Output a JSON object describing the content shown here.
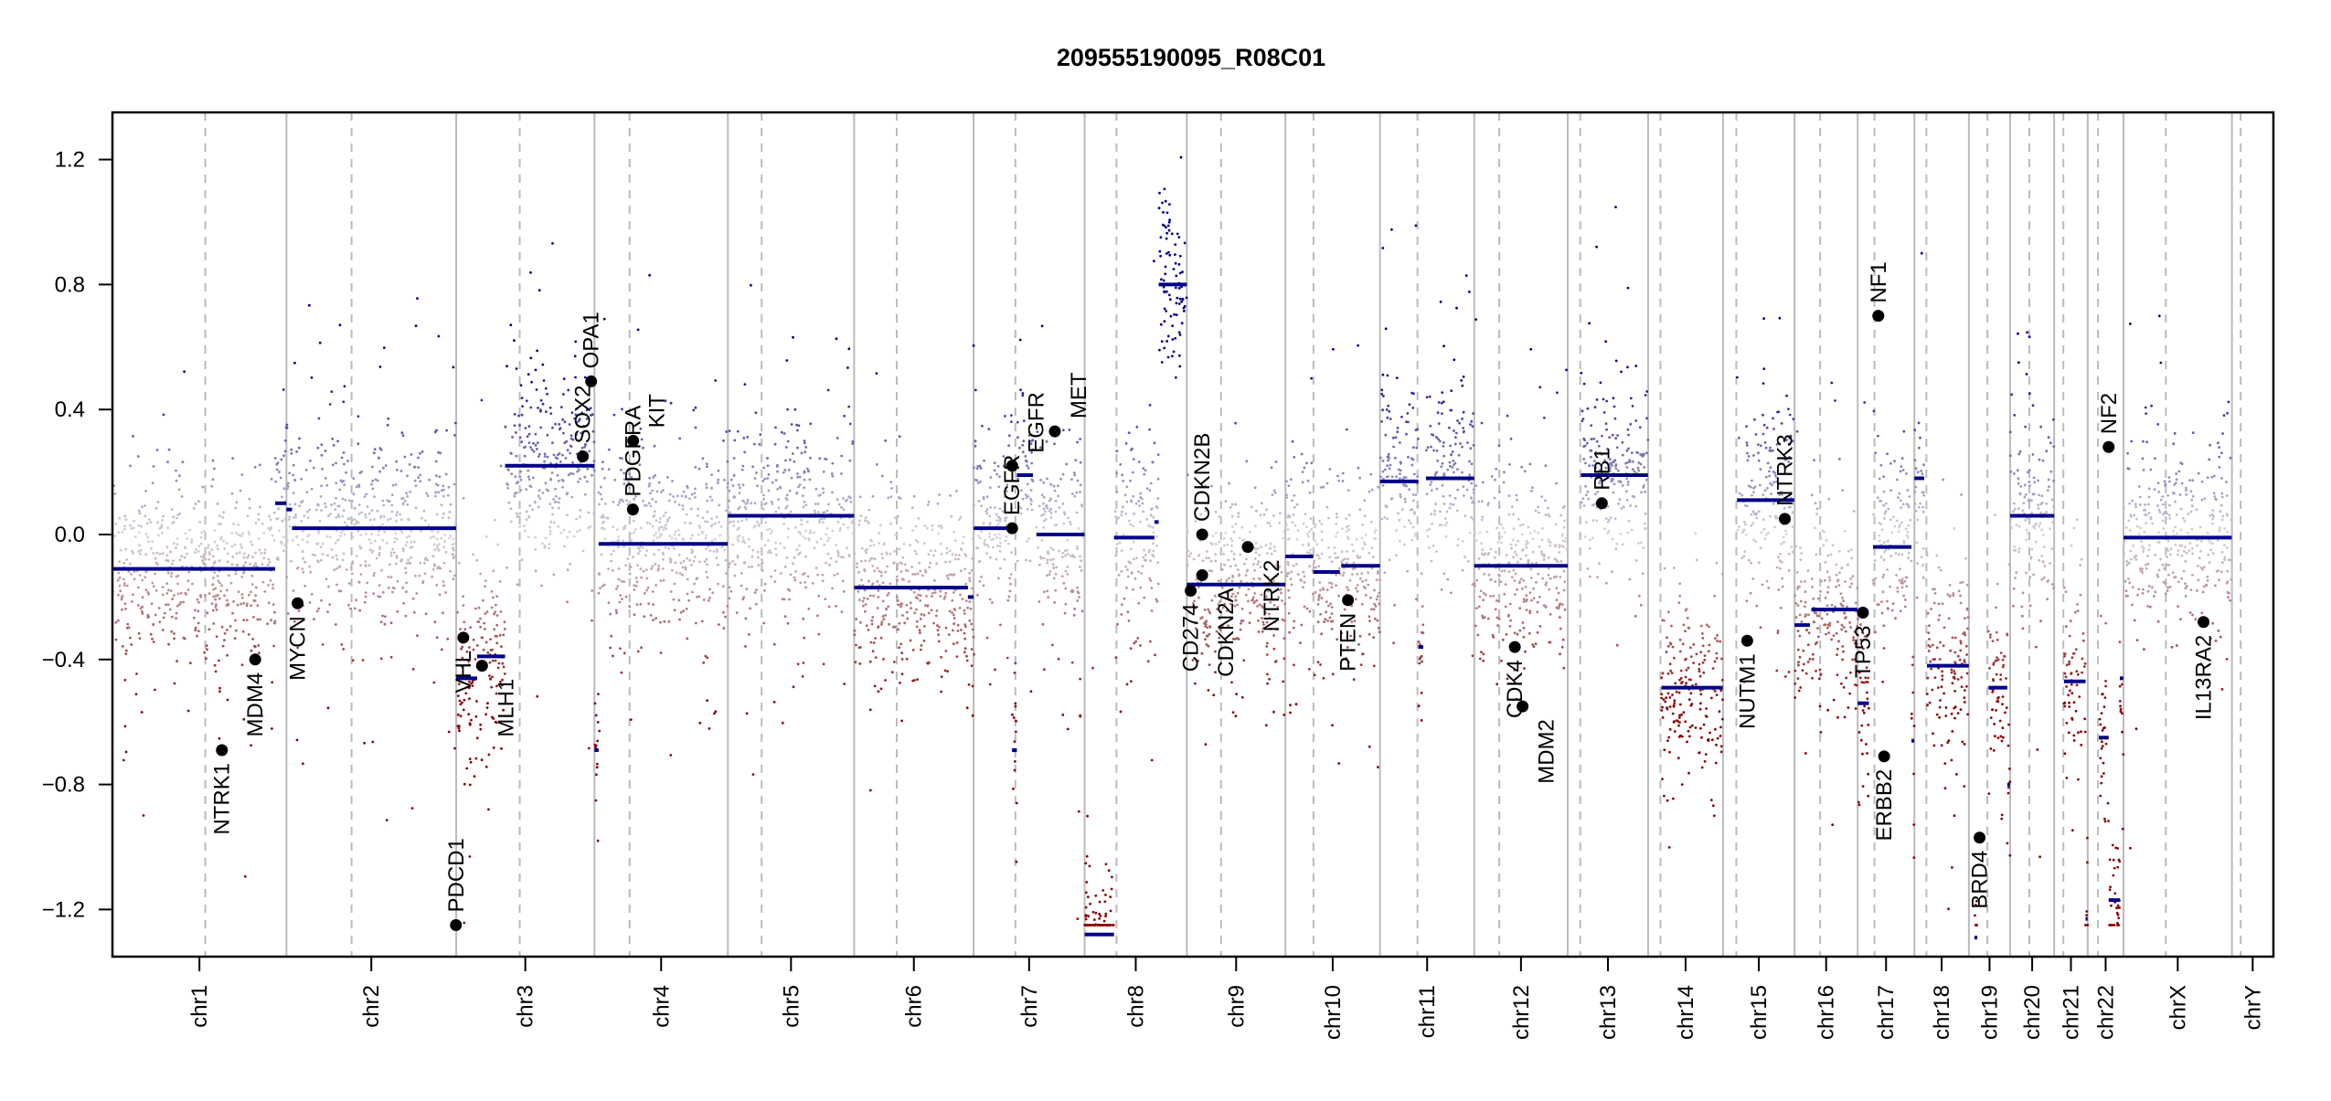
{
  "chart_data": {
    "type": "scatter",
    "title": "209555190095_R08C01",
    "xlabel": "",
    "ylabel": "",
    "ylim": [
      -1.35,
      1.35
    ],
    "y_ticks": [
      "-1.2",
      "-0.8",
      "-0.4",
      "0.0",
      "0.4",
      "0.8",
      "1.2"
    ],
    "grid": false,
    "colors": {
      "gain": "#00008B",
      "loss": "#8B0000",
      "neutral": "#d4d4da",
      "segment": "#00008B",
      "gene_point": "#000000",
      "chrom_line": "#bbbbbb",
      "centromere_line": "#bbbbbb"
    },
    "chromosomes": [
      {
        "name": "chr1",
        "length_mb": 249.25,
        "centromere_mb": 133
      },
      {
        "name": "chr2",
        "length_mb": 243.2,
        "centromere_mb": 93.3
      },
      {
        "name": "chr3",
        "length_mb": 198.0,
        "centromere_mb": 91
      },
      {
        "name": "chr4",
        "length_mb": 191.15,
        "centromere_mb": 50.4
      },
      {
        "name": "chr5",
        "length_mb": 180.9,
        "centromere_mb": 48.4
      },
      {
        "name": "chr6",
        "length_mb": 171.1,
        "centromere_mb": 61
      },
      {
        "name": "chr7",
        "length_mb": 159.1,
        "centromere_mb": 59.9
      },
      {
        "name": "chr8",
        "length_mb": 146.4,
        "centromere_mb": 45.6
      },
      {
        "name": "chr9",
        "length_mb": 141.2,
        "centromere_mb": 49
      },
      {
        "name": "chr10",
        "length_mb": 135.5,
        "centromere_mb": 40.2
      },
      {
        "name": "chr11",
        "length_mb": 135.0,
        "centromere_mb": 53.7
      },
      {
        "name": "chr12",
        "length_mb": 133.9,
        "centromere_mb": 35.8
      },
      {
        "name": "chr13",
        "length_mb": 115.2,
        "centromere_mb": 17.9
      },
      {
        "name": "chr14",
        "length_mb": 107.3,
        "centromere_mb": 17.6
      },
      {
        "name": "chr15",
        "length_mb": 102.5,
        "centromere_mb": 19
      },
      {
        "name": "chr16",
        "length_mb": 90.4,
        "centromere_mb": 36.6
      },
      {
        "name": "chr17",
        "length_mb": 81.2,
        "centromere_mb": 24
      },
      {
        "name": "chr18",
        "length_mb": 78.1,
        "centromere_mb": 17.2
      },
      {
        "name": "chr19",
        "length_mb": 59.1,
        "centromere_mb": 26.5
      },
      {
        "name": "chr20",
        "length_mb": 63.0,
        "centromere_mb": 27.5
      },
      {
        "name": "chr21",
        "length_mb": 48.1,
        "centromere_mb": 13.2
      },
      {
        "name": "chr22",
        "length_mb": 51.3,
        "centromere_mb": 14.7
      },
      {
        "name": "chrX",
        "length_mb": 155.3,
        "centromere_mb": 60.6
      },
      {
        "name": "chrY",
        "length_mb": 59.4,
        "centromere_mb": 12.5
      }
    ],
    "segments": [
      {
        "chr": "chr1",
        "start_mb": 0,
        "end_mb": 233,
        "value": -0.11
      },
      {
        "chr": "chr1",
        "start_mb": 233,
        "end_mb": 249,
        "value": 0.1
      },
      {
        "chr": "chr2",
        "start_mb": 0,
        "end_mb": 8,
        "value": 0.08
      },
      {
        "chr": "chr2",
        "start_mb": 8,
        "end_mb": 243,
        "value": 0.02
      },
      {
        "chr": "chr3",
        "start_mb": 0,
        "end_mb": 30,
        "value": -0.46
      },
      {
        "chr": "chr3",
        "start_mb": 30,
        "end_mb": 70,
        "value": -0.39
      },
      {
        "chr": "chr3",
        "start_mb": 70,
        "end_mb": 198,
        "value": 0.22
      },
      {
        "chr": "chr4",
        "start_mb": 0,
        "end_mb": 6,
        "value": -0.69
      },
      {
        "chr": "chr4",
        "start_mb": 6,
        "end_mb": 191,
        "value": -0.03
      },
      {
        "chr": "chr5",
        "start_mb": 0,
        "end_mb": 180.9,
        "value": 0.06
      },
      {
        "chr": "chr6",
        "start_mb": 0,
        "end_mb": 163,
        "value": -0.17
      },
      {
        "chr": "chr6",
        "start_mb": 163,
        "end_mb": 171,
        "value": -0.2
      },
      {
        "chr": "chr7",
        "start_mb": 0,
        "end_mb": 55,
        "value": 0.02
      },
      {
        "chr": "chr7",
        "start_mb": 55,
        "end_mb": 62,
        "value": -0.69
      },
      {
        "chr": "chr7",
        "start_mb": 62,
        "end_mb": 85,
        "value": 0.19
      },
      {
        "chr": "chr7",
        "start_mb": 90,
        "end_mb": 159,
        "value": 0.0
      },
      {
        "chr": "chr8",
        "start_mb": 0,
        "end_mb": 42,
        "value": -1.28
      },
      {
        "chr": "chr8",
        "start_mb": 42,
        "end_mb": 100,
        "value": -0.01
      },
      {
        "chr": "chr8",
        "start_mb": 100,
        "end_mb": 106,
        "value": 0.04
      },
      {
        "chr": "chr8",
        "start_mb": 106,
        "end_mb": 146.4,
        "value": 0.8
      },
      {
        "chr": "chr9",
        "start_mb": 0,
        "end_mb": 141,
        "value": -0.16
      },
      {
        "chr": "chr10",
        "start_mb": 0,
        "end_mb": 40,
        "value": -0.07
      },
      {
        "chr": "chr10",
        "start_mb": 40,
        "end_mb": 78,
        "value": -0.12
      },
      {
        "chr": "chr10",
        "start_mb": 80,
        "end_mb": 135.5,
        "value": -0.1
      },
      {
        "chr": "chr11",
        "start_mb": 0,
        "end_mb": 55,
        "value": 0.17
      },
      {
        "chr": "chr11",
        "start_mb": 55,
        "end_mb": 62,
        "value": -0.36
      },
      {
        "chr": "chr11",
        "start_mb": 66,
        "end_mb": 135,
        "value": 0.18
      },
      {
        "chr": "chr12",
        "start_mb": 0,
        "end_mb": 134,
        "value": -0.1
      },
      {
        "chr": "chr13",
        "start_mb": 19,
        "end_mb": 115,
        "value": 0.19
      },
      {
        "chr": "chr14",
        "start_mb": 19,
        "end_mb": 107,
        "value": -0.49
      },
      {
        "chr": "chr15",
        "start_mb": 20,
        "end_mb": 102,
        "value": 0.11
      },
      {
        "chr": "chr16",
        "start_mb": 0,
        "end_mb": 22,
        "value": -0.29
      },
      {
        "chr": "chr16",
        "start_mb": 24,
        "end_mb": 90,
        "value": -0.24
      },
      {
        "chr": "chr17",
        "start_mb": 0,
        "end_mb": 16,
        "value": -0.54
      },
      {
        "chr": "chr17",
        "start_mb": 22,
        "end_mb": 77,
        "value": -0.04
      },
      {
        "chr": "chr17",
        "start_mb": 77,
        "end_mb": 81,
        "value": -0.66
      },
      {
        "chr": "chr18",
        "start_mb": 0,
        "end_mb": 14,
        "value": 0.18
      },
      {
        "chr": "chr18",
        "start_mb": 18,
        "end_mb": 78,
        "value": -0.42
      },
      {
        "chr": "chr19",
        "start_mb": 8,
        "end_mb": 12,
        "value": -1.29
      },
      {
        "chr": "chr19",
        "start_mb": 28,
        "end_mb": 55,
        "value": -0.49
      },
      {
        "chr": "chr19",
        "start_mb": 55,
        "end_mb": 59,
        "value": -0.8
      },
      {
        "chr": "chr20",
        "start_mb": 0,
        "end_mb": 63,
        "value": 0.06
      },
      {
        "chr": "chr21",
        "start_mb": 14,
        "end_mb": 45,
        "value": -0.47
      },
      {
        "chr": "chr21",
        "start_mb": 45,
        "end_mb": 48,
        "value": -1.23
      },
      {
        "chr": "chr22",
        "start_mb": 16,
        "end_mb": 30,
        "value": -0.65
      },
      {
        "chr": "chr22",
        "start_mb": 30,
        "end_mb": 46,
        "value": -1.17
      },
      {
        "chr": "chr22",
        "start_mb": 46,
        "end_mb": 51,
        "value": -0.46
      },
      {
        "chr": "chrX",
        "start_mb": 0,
        "end_mb": 155,
        "value": -0.01
      }
    ],
    "genes": [
      {
        "name": "NTRK1",
        "chr": "chr1",
        "pos_mb": 156.8,
        "value": -0.69
      },
      {
        "name": "MDM4",
        "chr": "chr1",
        "pos_mb": 204.5,
        "value": -0.4
      },
      {
        "name": "MYCN",
        "chr": "chr2",
        "pos_mb": 16,
        "value": -0.22
      },
      {
        "name": "PDCD1",
        "chr": "chr2",
        "pos_mb": 242.8,
        "value": -1.25
      },
      {
        "name": "VHL",
        "chr": "chr3",
        "pos_mb": 10.2,
        "value": -0.33
      },
      {
        "name": "MLH1",
        "chr": "chr3",
        "pos_mb": 37,
        "value": -0.42
      },
      {
        "name": "SOX2",
        "chr": "chr3",
        "pos_mb": 181.4,
        "value": 0.25
      },
      {
        "name": "OPA1",
        "chr": "chr3",
        "pos_mb": 193.3,
        "value": 0.49
      },
      {
        "name": "PDGFRA",
        "chr": "chr4",
        "pos_mb": 55.1,
        "value": 0.08
      },
      {
        "name": "KIT",
        "chr": "chr4",
        "pos_mb": 55.5,
        "value": 0.3
      },
      {
        "name": "EGFR",
        "chr": "chr7",
        "pos_mb": 55.2,
        "value": 0.02
      },
      {
        "name": "EGFR",
        "chr": "chr7",
        "pos_mb": 55.3,
        "value": 0.22
      },
      {
        "name": "MET",
        "chr": "chr7",
        "pos_mb": 116.4,
        "value": 0.33
      },
      {
        "name": "CD274",
        "chr": "chr9",
        "pos_mb": 5.5,
        "value": -0.18
      },
      {
        "name": "CDKN2A",
        "chr": "chr9",
        "pos_mb": 21.97,
        "value": -0.13
      },
      {
        "name": "CDKN2B",
        "chr": "chr9",
        "pos_mb": 22.0,
        "value": 0.0
      },
      {
        "name": "NTRK2",
        "chr": "chr9",
        "pos_mb": 87.3,
        "value": -0.04
      },
      {
        "name": "PTEN",
        "chr": "chr10",
        "pos_mb": 89.6,
        "value": -0.21
      },
      {
        "name": "CDK4",
        "chr": "chr12",
        "pos_mb": 58.1,
        "value": -0.36
      },
      {
        "name": "MDM2",
        "chr": "chr12",
        "pos_mb": 69.2,
        "value": -0.55
      },
      {
        "name": "RB1",
        "chr": "chr13",
        "pos_mb": 48.9,
        "value": 0.1
      },
      {
        "name": "NUTM1",
        "chr": "chr15",
        "pos_mb": 34.6,
        "value": -0.34
      },
      {
        "name": "NTRK3",
        "chr": "chr15",
        "pos_mb": 88.5,
        "value": 0.05
      },
      {
        "name": "TP53",
        "chr": "chr17",
        "pos_mb": 7.5,
        "value": -0.25
      },
      {
        "name": "NF1",
        "chr": "chr17",
        "pos_mb": 29.5,
        "value": 0.7
      },
      {
        "name": "ERBB2",
        "chr": "chr17",
        "pos_mb": 37.8,
        "value": -0.71
      },
      {
        "name": "BRD4",
        "chr": "chr19",
        "pos_mb": 15.3,
        "value": -0.97
      },
      {
        "name": "NF2",
        "chr": "chr22",
        "pos_mb": 30,
        "value": 0.28
      },
      {
        "name": "IL13RA2",
        "chr": "chrX",
        "pos_mb": 114.6,
        "value": -0.28
      }
    ]
  }
}
